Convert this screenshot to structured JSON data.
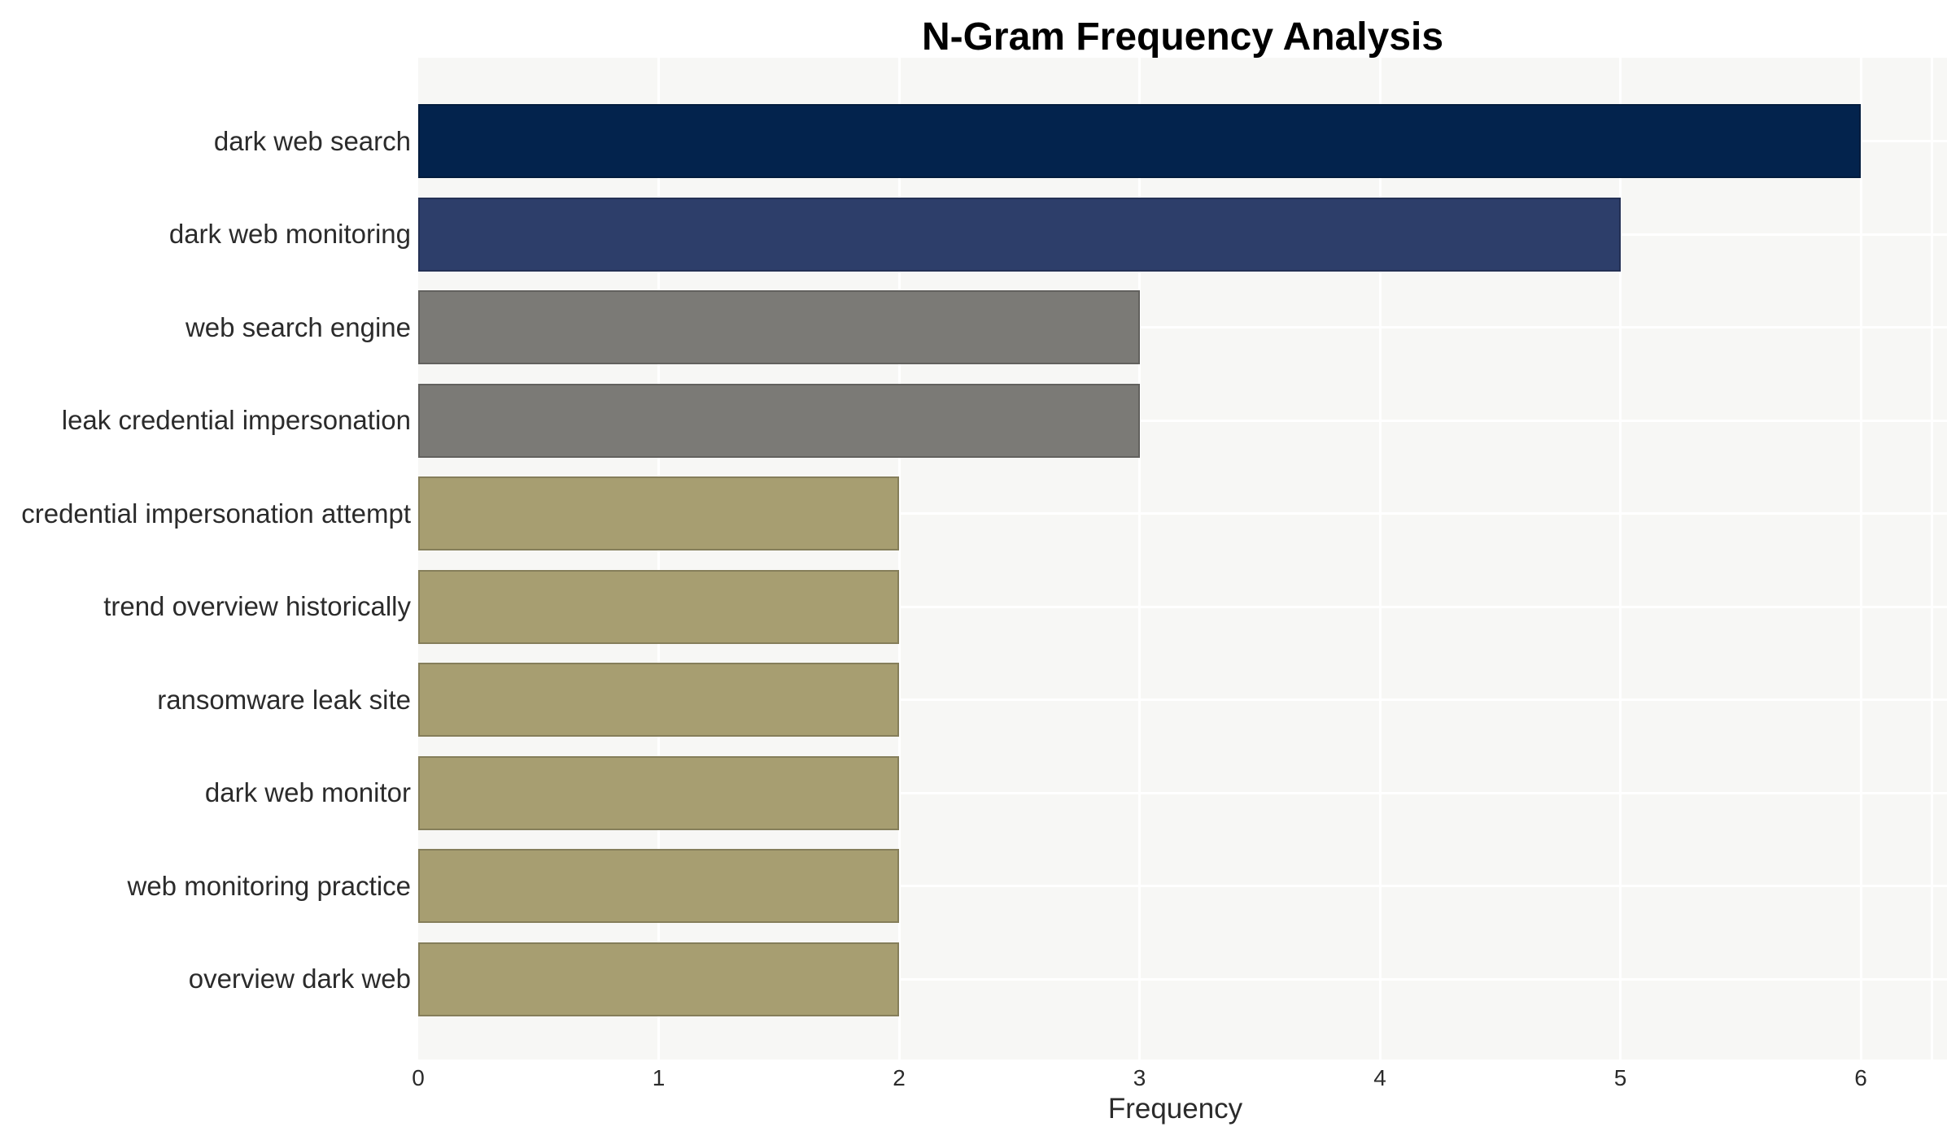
{
  "title": "N-Gram Frequency Analysis",
  "chart_data": {
    "type": "bar",
    "orientation": "horizontal",
    "title": "N-Gram Frequency Analysis",
    "xlabel": "Frequency",
    "ylabel": "",
    "categories": [
      "dark web search",
      "dark web monitoring",
      "web search engine",
      "leak credential impersonation",
      "credential impersonation attempt",
      "trend overview historically",
      "ransomware leak site",
      "dark web monitor",
      "web monitoring practice",
      "overview dark web"
    ],
    "values": [
      6,
      5,
      3,
      3,
      2,
      2,
      2,
      2,
      2,
      2
    ],
    "bar_colors": [
      "#03234d",
      "#2d3e6a",
      "#7b7a76",
      "#7b7a76",
      "#a79e71",
      "#a79e71",
      "#a79e71",
      "#a79e71",
      "#a79e71",
      "#a79e71"
    ],
    "xticks": [
      0,
      1,
      2,
      3,
      4,
      5,
      6
    ],
    "xlim": [
      0,
      6.36
    ],
    "grid": true,
    "legend": false,
    "plot_background": "#f7f7f5",
    "grid_color": "#ffffff",
    "text_color": "#2b2b2b",
    "title_color": "#000000"
  }
}
